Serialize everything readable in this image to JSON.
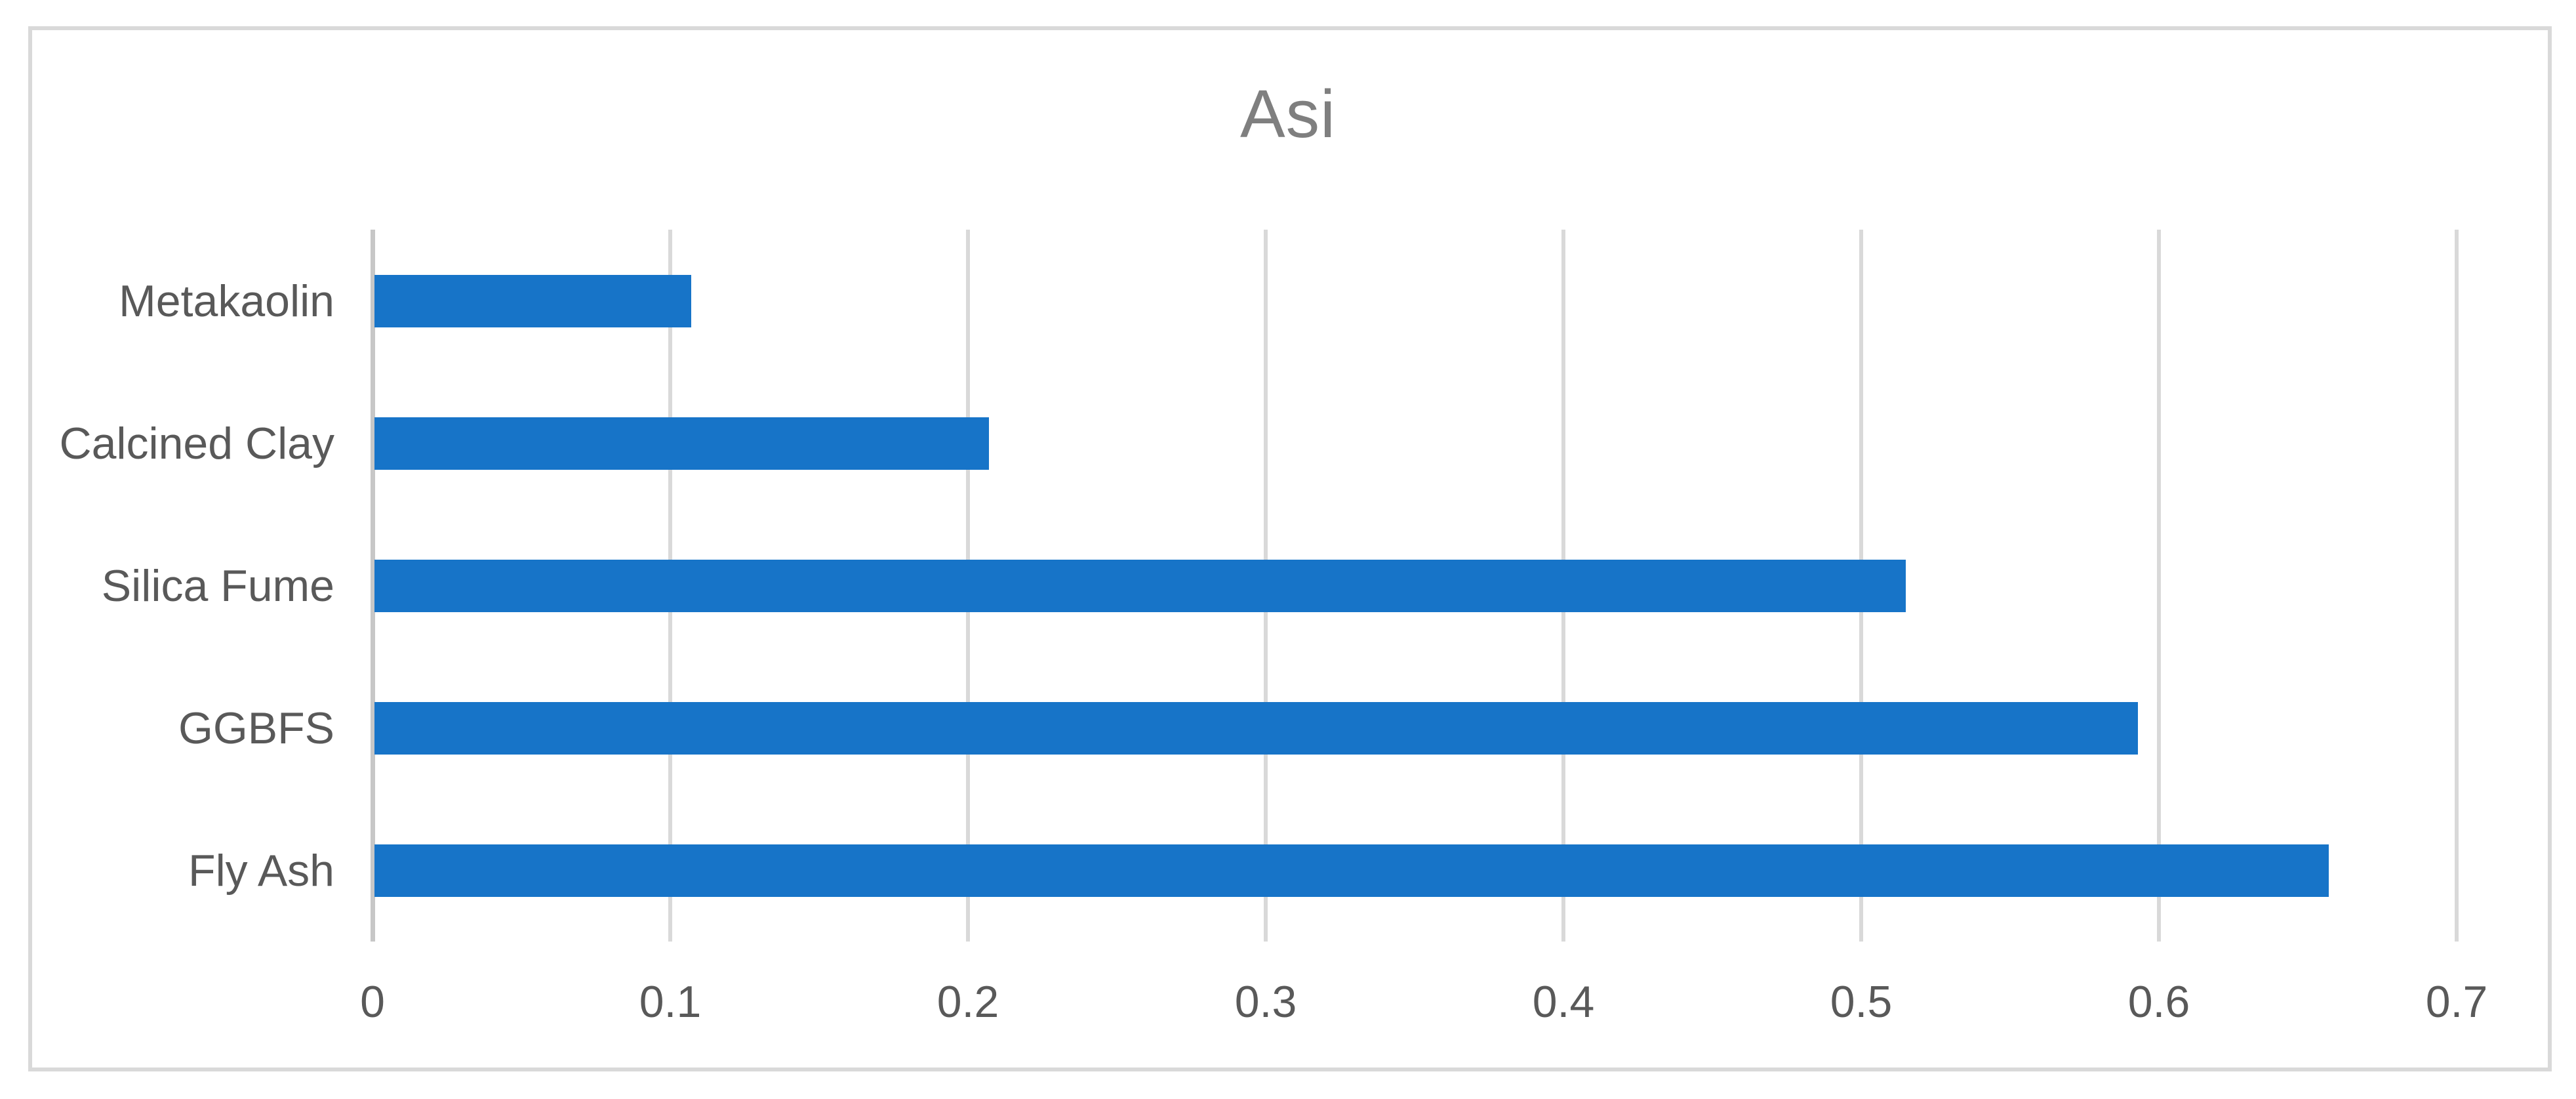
{
  "chart_data": {
    "type": "bar",
    "orientation": "horizontal",
    "title": "Asi",
    "categories": [
      "Metakaolin",
      "Calcined Clay",
      "Silica Fume",
      "GGBFS",
      "Fly Ash"
    ],
    "category_order": "top-to-bottom",
    "values": [
      0.107,
      0.207,
      0.515,
      0.593,
      0.657
    ],
    "xlabel": "",
    "ylabel": "",
    "xlim": [
      0,
      0.7
    ],
    "xticks": [
      "0",
      "0.1",
      "0.2",
      "0.3",
      "0.4",
      "0.5",
      "0.6",
      "0.7"
    ],
    "grid": "vertical",
    "legend": "none",
    "data_labels": "none",
    "colors": {
      "bar": "#1774C8",
      "gridline": "#D9D9D9",
      "axis_line": "#C7C7C7",
      "title_text": "#7F7F7F",
      "label_text": "#595959",
      "frame_border": "#D9D9D9",
      "background": "#FFFFFF"
    }
  }
}
